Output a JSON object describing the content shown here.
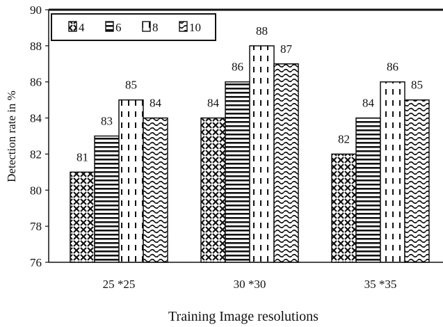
{
  "chart_data": {
    "type": "bar",
    "categories": [
      "25*25",
      "30*30",
      "35*35"
    ],
    "series": [
      {
        "name": "4",
        "values": [
          81,
          84,
          82
        ],
        "pattern": "crosshatch"
      },
      {
        "name": "6",
        "values": [
          83,
          86,
          84
        ],
        "pattern": "horizontal-lines"
      },
      {
        "name": "8",
        "values": [
          85,
          88,
          86
        ],
        "pattern": "vertical-dashes"
      },
      {
        "name": "10",
        "values": [
          84,
          87,
          85
        ],
        "pattern": "waves"
      }
    ],
    "title": "",
    "xlabel": "Training  Image resolutions",
    "ylabel": "Detection rate in %",
    "ylim": [
      76,
      90
    ],
    "yticks": [
      76,
      78,
      80,
      82,
      84,
      86,
      88,
      90
    ],
    "grid": false,
    "legend_position": "top-left",
    "data_labels": true,
    "colors": {
      "ink": "#111111",
      "background": "#ffffff"
    }
  }
}
